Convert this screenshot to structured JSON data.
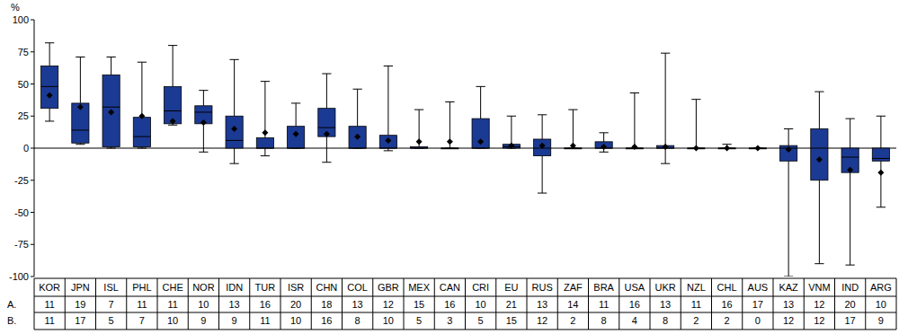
{
  "chart_data": {
    "type": "box",
    "y_label": "%",
    "color": "#1b3a93",
    "grid": false,
    "categories": [
      "KOR",
      "JPN",
      "ISL",
      "PHL",
      "CHE",
      "NOR",
      "IDN",
      "TUR",
      "ISR",
      "CHN",
      "COL",
      "GBR",
      "MEX",
      "CAN",
      "CRI",
      "EU",
      "RUS",
      "ZAF",
      "BRA",
      "USA",
      "UKR",
      "NZL",
      "CHL",
      "AUS",
      "KAZ",
      "VNM",
      "IND",
      "ARG"
    ],
    "min": [
      21,
      3,
      0,
      0,
      18,
      -3,
      -12,
      -6,
      0,
      -11,
      0,
      -2,
      0,
      0,
      0,
      0,
      -35,
      0,
      -3,
      0,
      -12,
      0,
      0,
      0,
      -100,
      -90,
      -91,
      -46
    ],
    "q1": [
      31,
      4,
      1,
      1,
      19,
      19,
      0,
      0,
      0,
      9,
      0,
      0,
      0,
      0,
      0,
      0,
      -6,
      0,
      0,
      0,
      0,
      0,
      0,
      0,
      -10,
      -25,
      -19,
      -10
    ],
    "median": [
      48,
      14,
      32,
      9,
      29,
      28,
      6,
      0,
      0,
      16,
      0,
      0,
      0,
      0,
      0,
      1,
      0,
      0,
      0,
      0,
      0,
      0,
      0,
      0,
      0,
      0,
      -7,
      -8
    ],
    "q3": [
      64,
      35,
      57,
      24,
      48,
      33,
      25,
      8,
      17,
      31,
      17,
      10,
      1,
      0,
      23,
      3,
      7,
      0,
      5,
      0,
      2,
      0,
      0,
      0,
      2,
      15,
      0,
      0
    ],
    "max": [
      82,
      71,
      71,
      67,
      80,
      45,
      69,
      52,
      35,
      58,
      46,
      64,
      30,
      36,
      48,
      25,
      26,
      30,
      12,
      43,
      74,
      38,
      3,
      0,
      15,
      44,
      23,
      25
    ],
    "mean": [
      41,
      32,
      28,
      25,
      21,
      20,
      15,
      12,
      11,
      11,
      9,
      6,
      5,
      5,
      5,
      2,
      2,
      2,
      1,
      1,
      1,
      0,
      0,
      0,
      -1,
      -9,
      -17,
      -19
    ],
    "table_rows": [
      {
        "label": "A.",
        "values": [
          11,
          19,
          7,
          11,
          11,
          10,
          13,
          16,
          20,
          18,
          13,
          12,
          15,
          16,
          10,
          21,
          13,
          14,
          11,
          16,
          13,
          11,
          16,
          17,
          13,
          12,
          20,
          10
        ]
      },
      {
        "label": "B.",
        "values": [
          11,
          17,
          5,
          7,
          10,
          9,
          9,
          11,
          10,
          16,
          8,
          10,
          5,
          3,
          5,
          15,
          12,
          2,
          8,
          4,
          8,
          2,
          2,
          0,
          12,
          12,
          17,
          9
        ]
      }
    ],
    "ylim": [
      -100,
      100
    ],
    "yticks": [
      -100,
      -75,
      -50,
      -25,
      0,
      25,
      50,
      75,
      100
    ]
  }
}
